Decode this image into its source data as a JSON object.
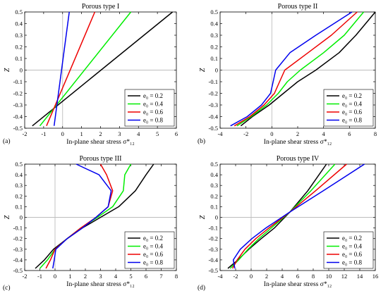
{
  "figure": {
    "panel_labels": [
      "(a)",
      "(b)",
      "(c)",
      "(d)"
    ],
    "legend_labels": [
      "e₀ = 0.2",
      "e₀ = 0.4",
      "e₀ = 0.6",
      "e₀ = 0.8"
    ],
    "series_colors": [
      "#000000",
      "#00ee00",
      "#ee0000",
      "#0000ee"
    ]
  },
  "chart_data": [
    {
      "type": "line",
      "title": "Porous type I",
      "xlabel": "In-plane shear stress σ*₁₂",
      "ylabel": "Z",
      "xlim": [
        -2,
        6
      ],
      "ylim": [
        -0.5,
        0.5
      ],
      "xticks": [
        -2,
        -1,
        0,
        1,
        2,
        3,
        4,
        5,
        6
      ],
      "yticks": [
        0.5,
        0.4,
        0.3,
        0.2,
        0.1,
        0,
        -0.1,
        -0.2,
        -0.3,
        -0.4,
        -0.5
      ],
      "legend_position": "bottom-right",
      "grid": false,
      "series": [
        {
          "name": "e₀ = 0.2",
          "x": [
            -1.6,
            5.8
          ],
          "y": [
            -0.48,
            0.5
          ]
        },
        {
          "name": "e₀ = 0.4",
          "x": [
            -1.2,
            3.6
          ],
          "y": [
            -0.48,
            0.5
          ]
        },
        {
          "name": "e₀ = 0.6",
          "x": [
            -0.85,
            1.7
          ],
          "y": [
            -0.48,
            0.5
          ]
        },
        {
          "name": "e₀ = 0.8",
          "x": [
            -0.45,
            0.35
          ],
          "y": [
            -0.48,
            0.5
          ]
        }
      ]
    },
    {
      "type": "line",
      "title": "Porous type II",
      "xlabel": "In-plane shear stress σ*₁₂",
      "ylabel": "Z",
      "xlim": [
        -4,
        8
      ],
      "ylim": [
        -0.5,
        0.5
      ],
      "xticks": [
        -4,
        -2,
        0,
        2,
        4,
        6,
        8
      ],
      "yticks": [
        0.5,
        0.4,
        0.3,
        0.2,
        0.1,
        0,
        -0.1,
        -0.2,
        -0.3,
        -0.4,
        -0.5
      ],
      "legend_position": "bottom-right",
      "grid": false,
      "series": [
        {
          "name": "e₀ = 0.2",
          "x": [
            -2.4,
            -1.5,
            -0.2,
            0.9,
            2.0,
            3.4,
            5.2,
            6.5,
            8.0
          ],
          "y": [
            -0.48,
            -0.4,
            -0.3,
            -0.2,
            -0.1,
            0.0,
            0.15,
            0.3,
            0.5
          ]
        },
        {
          "name": "e₀ = 0.4",
          "x": [
            -2.7,
            -1.6,
            -0.4,
            0.5,
            1.2,
            2.2,
            4.0,
            5.6,
            7.1
          ],
          "y": [
            -0.48,
            -0.4,
            -0.3,
            -0.2,
            -0.1,
            0.0,
            0.15,
            0.3,
            0.5
          ]
        },
        {
          "name": "e₀ = 0.6",
          "x": [
            -2.9,
            -1.7,
            -0.6,
            0.2,
            0.6,
            1.0,
            2.8,
            4.6,
            6.6
          ],
          "y": [
            -0.48,
            -0.4,
            -0.3,
            -0.2,
            -0.1,
            0.0,
            0.15,
            0.3,
            0.5
          ]
        },
        {
          "name": "e₀ = 0.8",
          "x": [
            -3.2,
            -1.9,
            -0.8,
            -0.1,
            0.1,
            0.3,
            1.4,
            3.4,
            6.2
          ],
          "y": [
            -0.48,
            -0.4,
            -0.3,
            -0.2,
            -0.1,
            0.0,
            0.15,
            0.3,
            0.5
          ]
        }
      ]
    },
    {
      "type": "line",
      "title": "Porous type III",
      "xlabel": "In-plane shear stress σ*₁₂",
      "ylabel": "Z",
      "xlim": [
        -2,
        8
      ],
      "ylim": [
        -0.5,
        0.5
      ],
      "xticks": [
        -2,
        -1,
        0,
        1,
        2,
        3,
        4,
        5,
        6,
        7,
        8
      ],
      "yticks": [
        0.5,
        0.4,
        0.3,
        0.2,
        0.1,
        0,
        -0.1,
        -0.2,
        -0.3,
        -0.4,
        -0.5
      ],
      "legend_position": "bottom-right",
      "grid": false,
      "series": [
        {
          "name": "e₀ = 0.2",
          "x": [
            -1.3,
            -0.7,
            -0.1,
            0.8,
            1.8,
            3.0,
            4.2,
            5.3,
            6.0,
            6.5
          ],
          "y": [
            -0.48,
            -0.4,
            -0.3,
            -0.2,
            -0.1,
            0.0,
            0.1,
            0.25,
            0.4,
            0.5
          ]
        },
        {
          "name": "e₀ = 0.4",
          "x": [
            -1.0,
            -0.5,
            0.0,
            0.8,
            1.7,
            2.8,
            3.8,
            4.5,
            4.6,
            5.0
          ],
          "y": [
            -0.48,
            -0.4,
            -0.3,
            -0.2,
            -0.1,
            0.0,
            0.1,
            0.25,
            0.4,
            0.5
          ]
        },
        {
          "name": "e₀ = 0.6",
          "x": [
            -0.6,
            -0.3,
            0.0,
            0.8,
            1.7,
            2.7,
            3.5,
            3.8,
            3.4,
            3.0
          ],
          "y": [
            -0.48,
            -0.4,
            -0.3,
            -0.2,
            -0.1,
            0.0,
            0.1,
            0.25,
            0.4,
            0.5
          ]
        },
        {
          "name": "e₀ = 0.8",
          "x": [
            -0.15,
            -0.05,
            0.05,
            0.8,
            1.8,
            2.7,
            3.5,
            3.7,
            2.9,
            1.4
          ],
          "y": [
            -0.48,
            -0.4,
            -0.3,
            -0.2,
            -0.1,
            0.0,
            0.1,
            0.25,
            0.4,
            0.5
          ]
        }
      ]
    },
    {
      "type": "line",
      "title": "Porous type IV",
      "xlabel": "In-plane shear stress σ*₁₂",
      "ylabel": "Z",
      "xlim": [
        -4,
        16
      ],
      "ylim": [
        -0.5,
        0.5
      ],
      "xticks": [
        -4,
        -2,
        0,
        2,
        4,
        6,
        8,
        10,
        12,
        14,
        16
      ],
      "yticks": [
        0.5,
        0.4,
        0.3,
        0.2,
        0.1,
        0,
        -0.1,
        -0.2,
        -0.3,
        -0.4,
        -0.5
      ],
      "legend_position": "bottom-right",
      "grid": false,
      "series": [
        {
          "name": "e₀ = 0.2",
          "x": [
            -3.0,
            -1.7,
            -0.3,
            1.3,
            3.0,
            5.0,
            7.3,
            9.7
          ],
          "y": [
            -0.48,
            -0.4,
            -0.3,
            -0.2,
            -0.1,
            0.05,
            0.25,
            0.5
          ]
        },
        {
          "name": "e₀ = 0.4",
          "x": [
            -2.7,
            -1.6,
            -0.4,
            1.0,
            2.6,
            5.0,
            7.7,
            10.8
          ],
          "y": [
            -0.48,
            -0.4,
            -0.3,
            -0.2,
            -0.1,
            0.05,
            0.25,
            0.5
          ]
        },
        {
          "name": "e₀ = 0.6",
          "x": [
            -2.4,
            -1.8,
            -0.8,
            0.6,
            2.3,
            5.0,
            8.3,
            12.3
          ],
          "y": [
            -0.48,
            -0.4,
            -0.3,
            -0.2,
            -0.1,
            0.05,
            0.25,
            0.5
          ]
        },
        {
          "name": "e₀ = 0.8",
          "x": [
            -2.1,
            -2.3,
            -1.4,
            0.1,
            1.9,
            5.0,
            9.3,
            14.6
          ],
          "y": [
            -0.48,
            -0.4,
            -0.3,
            -0.2,
            -0.1,
            0.05,
            0.25,
            0.5
          ]
        }
      ]
    }
  ]
}
